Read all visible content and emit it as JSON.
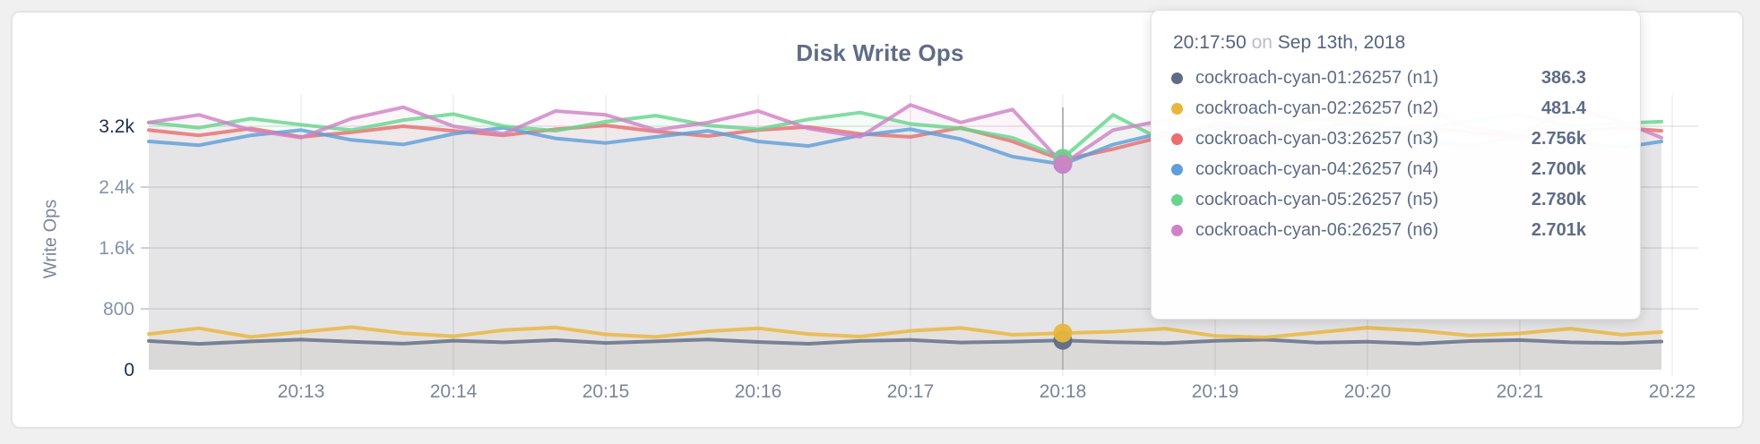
{
  "panel": {
    "background": "#ffffff",
    "border_color": "#e4e4e5",
    "page_background": "#f0f0f1"
  },
  "chart_data": {
    "type": "area",
    "title": "Disk Write Ops",
    "ylabel": "Write Ops",
    "xlabel": "",
    "grid": true,
    "legend_position": "tooltip",
    "ylim": [
      0,
      3480
    ],
    "y_ticks": [
      {
        "v": 0,
        "label": "0",
        "emphasis": true
      },
      {
        "v": 800,
        "label": "800",
        "emphasis": false
      },
      {
        "v": 1600,
        "label": "1.6k",
        "emphasis": false
      },
      {
        "v": 2400,
        "label": "2.4k",
        "emphasis": false
      },
      {
        "v": 3200,
        "label": "3.2k",
        "emphasis": true
      }
    ],
    "x_ticks": [
      {
        "t": 13,
        "label": "20:13"
      },
      {
        "t": 14,
        "label": "20:14"
      },
      {
        "t": 15,
        "label": "20:15"
      },
      {
        "t": 16,
        "label": "20:16"
      },
      {
        "t": 17,
        "label": "20:17"
      },
      {
        "t": 18,
        "label": "20:18"
      },
      {
        "t": 19,
        "label": "20:19"
      },
      {
        "t": 20,
        "label": "20:20"
      },
      {
        "t": 21,
        "label": "20:21"
      },
      {
        "t": 22,
        "label": "20:22"
      }
    ],
    "x_minutes": [
      12,
      12.33,
      12.67,
      13,
      13.33,
      13.67,
      14,
      14.33,
      14.67,
      15,
      15.33,
      15.67,
      16,
      16.33,
      16.67,
      17,
      17.33,
      17.67,
      18,
      18.33,
      18.67,
      19,
      19.33,
      19.67,
      20,
      20.33,
      20.67,
      21,
      21.33,
      21.67,
      21.93
    ],
    "series": [
      {
        "name": "cockroach-cyan-01:26257 (n1)",
        "color": "#5f6c87",
        "values": [
          378,
          340,
          372,
          395,
          368,
          342,
          381,
          360,
          390,
          352,
          374,
          398,
          365,
          341,
          378,
          392,
          358,
          370,
          386.3,
          362,
          348,
          380,
          395,
          356,
          368,
          342,
          377,
          390,
          360,
          350,
          371
        ]
      },
      {
        "name": "cockroach-cyan-02:26257 (n2)",
        "color": "#e9b63d",
        "values": [
          470,
          545,
          430,
          495,
          560,
          480,
          440,
          520,
          555,
          465,
          430,
          505,
          545,
          470,
          435,
          510,
          550,
          460,
          481.4,
          500,
          540,
          445,
          425,
          490,
          552,
          515,
          450,
          478,
          540,
          460,
          495
        ]
      },
      {
        "name": "cockroach-cyan-03:26257 (n3)",
        "color": "#e96f6f",
        "values": [
          3150,
          3080,
          3170,
          3060,
          3120,
          3200,
          3140,
          3080,
          3160,
          3210,
          3130,
          3070,
          3150,
          3190,
          3100,
          3060,
          3180,
          3000,
          2756,
          2900,
          3070,
          3210,
          3140,
          3080,
          3150,
          3200,
          3120,
          3060,
          3130,
          3180,
          3140
        ]
      },
      {
        "name": "cockroach-cyan-04:26257 (n4)",
        "color": "#5f9fd9",
        "values": [
          3000,
          2950,
          3080,
          3150,
          3020,
          2960,
          3100,
          3180,
          3040,
          2980,
          3060,
          3140,
          3000,
          2940,
          3080,
          3160,
          3030,
          2800,
          2700,
          2960,
          3120,
          2990,
          2930,
          3050,
          3130,
          3010,
          2950,
          3070,
          2990,
          2920,
          3000
        ]
      },
      {
        "name": "cockroach-cyan-05:26257 (n5)",
        "color": "#69d48e",
        "values": [
          3250,
          3180,
          3300,
          3220,
          3150,
          3280,
          3360,
          3200,
          3140,
          3260,
          3340,
          3210,
          3160,
          3290,
          3380,
          3230,
          3170,
          3050,
          2780,
          3350,
          3000,
          3250,
          3180,
          3300,
          3220,
          3150,
          3270,
          3350,
          3200,
          3240,
          3260
        ]
      },
      {
        "name": "cockroach-cyan-06:26257 (n6)",
        "color": "#cf82c6",
        "values": [
          3250,
          3350,
          3150,
          3050,
          3300,
          3450,
          3200,
          3100,
          3400,
          3350,
          3150,
          3250,
          3400,
          3170,
          3060,
          3480,
          3250,
          3420,
          2701,
          3150,
          3280,
          3420,
          3200,
          3120,
          3360,
          3480,
          3180,
          3090,
          3450,
          3260,
          3050
        ]
      }
    ],
    "hover": {
      "index": 18,
      "time": "20:17:50",
      "date_connector": "on",
      "date": "Sep 13th, 2018",
      "values_display": [
        "386.3",
        "481.4",
        "2.756k",
        "2.700k",
        "2.780k",
        "2.701k"
      ],
      "guideline_color": "#b5b5b5"
    },
    "colors": {
      "title": "#5f6c87",
      "axis_tick": "#8593a9",
      "axis_tick_emphasis": "#1d2c4f",
      "x_tick": "#7b8698",
      "grid_h": "rgba(0,0,0,0.08)",
      "grid_v": "rgba(0,0,0,0.055)"
    }
  }
}
